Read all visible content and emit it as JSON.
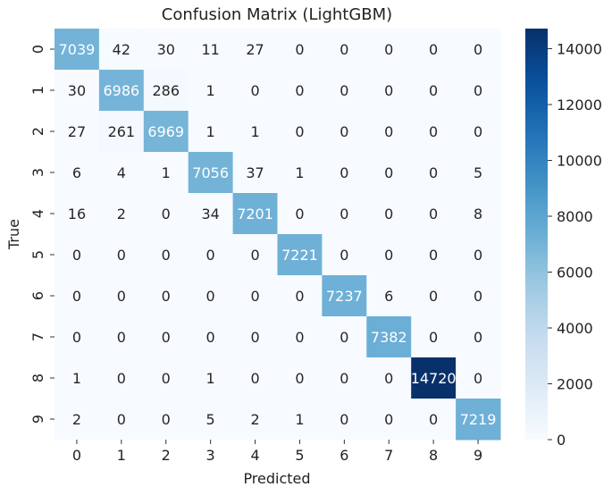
{
  "chart_data": {
    "type": "heatmap",
    "title": "Confusion Matrix (LightGBM)",
    "xlabel": "Predicted",
    "ylabel": "True",
    "x_ticks": [
      "0",
      "1",
      "2",
      "3",
      "4",
      "5",
      "6",
      "7",
      "8",
      "9"
    ],
    "y_ticks": [
      "0",
      "1",
      "2",
      "3",
      "4",
      "5",
      "6",
      "7",
      "8",
      "9"
    ],
    "matrix": [
      [
        7039,
        42,
        30,
        11,
        27,
        0,
        0,
        0,
        0,
        0
      ],
      [
        30,
        6986,
        286,
        1,
        0,
        0,
        0,
        0,
        0,
        0
      ],
      [
        27,
        261,
        6969,
        1,
        1,
        0,
        0,
        0,
        0,
        0
      ],
      [
        6,
        4,
        1,
        7056,
        37,
        1,
        0,
        0,
        0,
        5
      ],
      [
        16,
        2,
        0,
        34,
        7201,
        0,
        0,
        0,
        0,
        8
      ],
      [
        0,
        0,
        0,
        0,
        0,
        7221,
        0,
        0,
        0,
        0
      ],
      [
        0,
        0,
        0,
        0,
        0,
        0,
        7237,
        6,
        0,
        0
      ],
      [
        0,
        0,
        0,
        0,
        0,
        0,
        0,
        7382,
        0,
        0
      ],
      [
        1,
        0,
        0,
        1,
        0,
        0,
        0,
        0,
        14720,
        0
      ],
      [
        2,
        0,
        0,
        5,
        2,
        1,
        0,
        0,
        0,
        7219
      ]
    ],
    "colormap": "Blues",
    "vmin": 0,
    "vmax": 14720,
    "colorbar_ticks": [
      0,
      2000,
      4000,
      6000,
      8000,
      10000,
      12000,
      14000
    ],
    "grid": false
  }
}
